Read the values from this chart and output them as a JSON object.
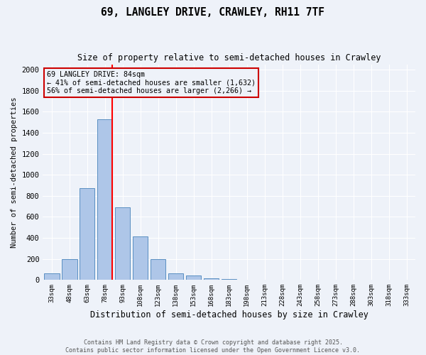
{
  "title": "69, LANGLEY DRIVE, CRAWLEY, RH11 7TF",
  "subtitle": "Size of property relative to semi-detached houses in Crawley",
  "xlabel": "Distribution of semi-detached houses by size in Crawley",
  "ylabel": "Number of semi-detached properties",
  "bin_labels": [
    "33sqm",
    "48sqm",
    "63sqm",
    "78sqm",
    "93sqm",
    "108sqm",
    "123sqm",
    "138sqm",
    "153sqm",
    "168sqm",
    "183sqm",
    "198sqm",
    "213sqm",
    "228sqm",
    "243sqm",
    "258sqm",
    "273sqm",
    "288sqm",
    "303sqm",
    "318sqm",
    "333sqm"
  ],
  "bin_values": [
    65,
    195,
    875,
    1530,
    690,
    415,
    195,
    60,
    45,
    15,
    10,
    0,
    0,
    0,
    0,
    0,
    0,
    0,
    0,
    0,
    0
  ],
  "bar_color": "#aec6e8",
  "bar_edge_color": "#5a8fc2",
  "property_label": "69 LANGLEY DRIVE: 84sqm",
  "pct_smaller": "41%",
  "count_smaller": "1,632",
  "pct_larger": "56%",
  "count_larger": "2,266",
  "annotation_box_color": "#cc0000",
  "ylim_max": 2050,
  "background_color": "#eef2f9",
  "grid_color": "#ffffff",
  "footer_line1": "Contains HM Land Registry data © Crown copyright and database right 2025.",
  "footer_line2": "Contains public sector information licensed under the Open Government Licence v3.0."
}
